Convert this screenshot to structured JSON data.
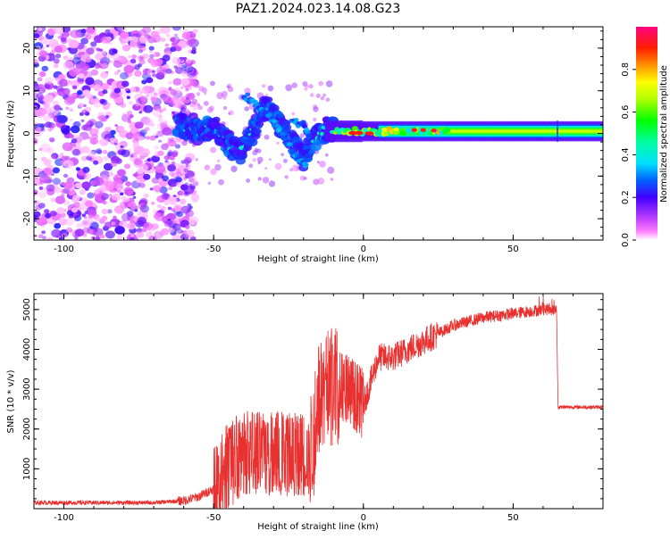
{
  "title": "PAZ1.2024.023.14.08.G23",
  "chart_data": [
    {
      "type": "heatmap",
      "xlabel": "Height of straight line (km)",
      "ylabel": "Frequency (Hz)",
      "xlim": [
        -110,
        80
      ],
      "ylim": [
        -25,
        25
      ],
      "x_ticks": [
        -100,
        -50,
        0,
        50
      ],
      "y_ticks": [
        -20,
        -10,
        0,
        10,
        20
      ],
      "colorbar": {
        "label": "Normalized spectral amplitude",
        "range": [
          0,
          1
        ],
        "ticks": [
          "0.0",
          "0.2",
          "0.4",
          "0.6",
          "0.8"
        ],
        "tick_values": [
          0.0,
          0.2,
          0.4,
          0.6,
          0.8
        ],
        "colormap": [
          "#ffffff",
          "#ff00ff",
          "#8000ff",
          "#0000ff",
          "#00ffff",
          "#00ff00",
          "#ffff00",
          "#ff8000",
          "#ff0000",
          "#ff0080"
        ]
      },
      "features": {
        "noise_region_km": [
          -110,
          -62
        ],
        "chirp_region_km": [
          -62,
          -10
        ],
        "carrier_region_km": [
          -10,
          80
        ],
        "carrier_frequency_hz": 0.5
      }
    },
    {
      "type": "line",
      "xlabel": "Height of straight line (km)",
      "ylabel": "SNR (10 * v/v)",
      "xlim": [
        -110,
        80
      ],
      "ylim": [
        0,
        5400
      ],
      "x_ticks": [
        -100,
        -50,
        0,
        50
      ],
      "y_ticks": [
        1000,
        2000,
        3000,
        4000,
        5000
      ],
      "series": [
        {
          "color": "#e8302f",
          "trend_x": [
            -110,
            -70,
            -60,
            -55,
            -50,
            -45,
            -40,
            -35,
            -30,
            -25,
            -20,
            -17,
            -15,
            -12,
            -10,
            -5,
            0,
            5,
            10,
            20,
            30,
            40,
            50,
            60,
            64.5,
            65,
            70,
            80
          ],
          "trend_y": [
            150,
            150,
            200,
            300,
            500,
            1100,
            1400,
            1400,
            1400,
            1400,
            1400,
            1500,
            2800,
            3000,
            3100,
            3000,
            2600,
            3800,
            3800,
            4200,
            4600,
            4800,
            4900,
            5000,
            5000,
            2550,
            2550,
            2550
          ]
        }
      ]
    }
  ]
}
